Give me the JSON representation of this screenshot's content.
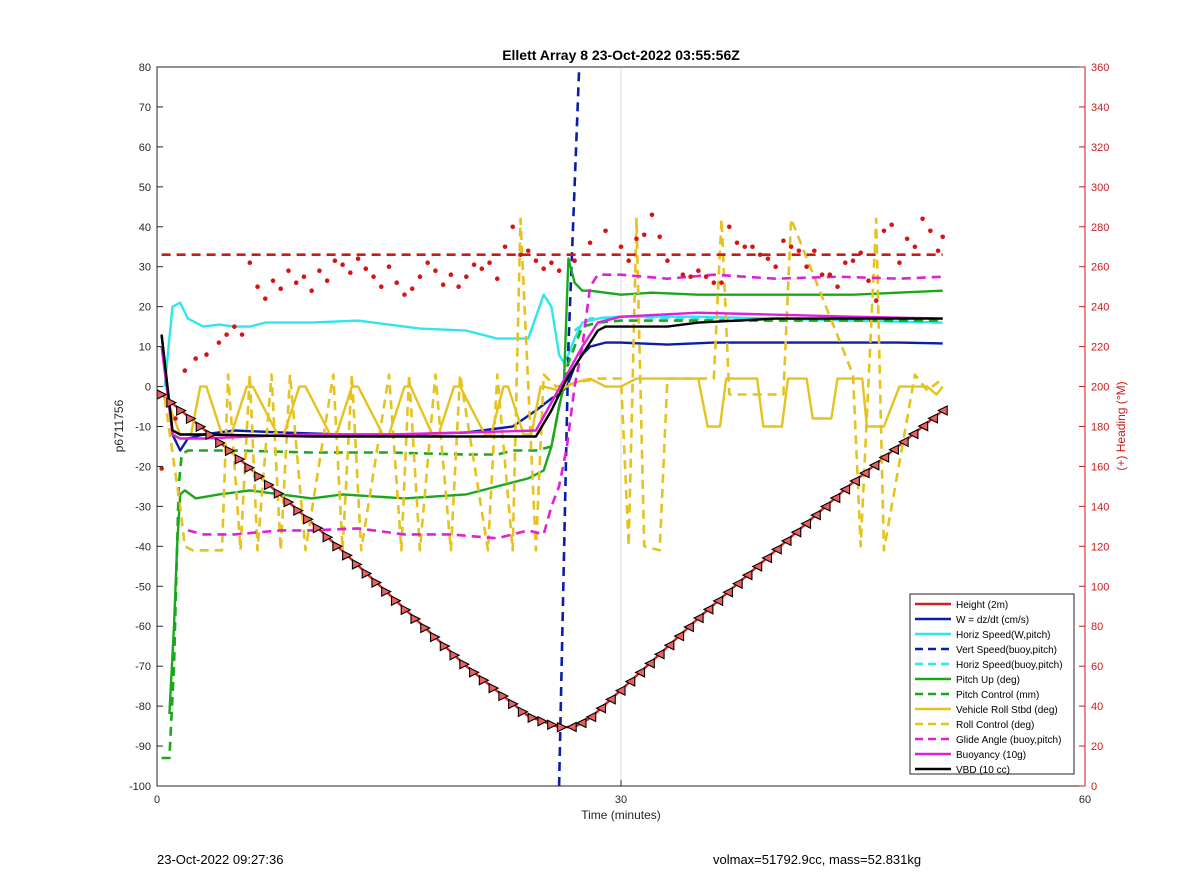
{
  "chart_data": {
    "type": "line",
    "title": "Ellett Array 8 23-Oct-2022 03:55:56Z",
    "xlabel": "Time (minutes)",
    "ylabel": "p6711756",
    "y2label": "(+) Heading (°M)",
    "xlim": [
      0,
      60
    ],
    "ylim": [
      -100,
      80
    ],
    "y2lim": [
      0,
      360
    ],
    "xticks": [
      0,
      30,
      60
    ],
    "yticks": [
      -100,
      -90,
      -80,
      -70,
      -60,
      -50,
      -40,
      -30,
      -20,
      -10,
      0,
      10,
      20,
      30,
      40,
      50,
      60,
      70,
      80
    ],
    "y2ticks": [
      0,
      20,
      40,
      60,
      80,
      100,
      120,
      140,
      160,
      180,
      200,
      220,
      240,
      260,
      280,
      300,
      320,
      340,
      360
    ],
    "grid": "x-only",
    "legend_position": "bottom-right",
    "series": [
      {
        "name": "Height (2m)",
        "color": "#d62020",
        "dash": "solid",
        "axis": "left",
        "x": [
          0.3,
          5,
          10,
          15,
          20,
          24,
          26,
          27,
          28,
          30,
          35,
          40,
          45,
          50.8
        ],
        "y": [
          -2,
          -17,
          -34,
          -52,
          -70,
          -82.5,
          -85.3,
          -85.2,
          -83,
          -76,
          -58,
          -41,
          -24,
          -6
        ]
      },
      {
        "name": "W = dz/dt (cm/s)",
        "color": "#0a1ea8",
        "dash": "solid",
        "axis": "left",
        "x": [
          0.3,
          1,
          1.5,
          2,
          3,
          5,
          8,
          12,
          16,
          20,
          23,
          24.5,
          25.5,
          26,
          26.5,
          27,
          27.5,
          28,
          29,
          30,
          33,
          36,
          40,
          44,
          48,
          50.8
        ],
        "y": [
          13,
          -12,
          -16,
          -13,
          -12,
          -11,
          -11.5,
          -12,
          -12,
          -11.5,
          -10,
          -6,
          -3,
          -2,
          0,
          5,
          8,
          10,
          11,
          11,
          10.5,
          11,
          11,
          11,
          11,
          10.8
        ]
      },
      {
        "name": "Horiz Speed(W,pitch)",
        "color": "#2ee6ee",
        "dash": "solid",
        "axis": "left",
        "x": [
          0.5,
          1,
          1.5,
          2,
          2.5,
          3,
          4,
          5,
          6,
          7,
          10,
          13,
          15,
          17,
          20,
          22,
          24,
          25,
          25.5,
          26,
          26.3,
          26.6,
          27,
          27.5,
          28.5,
          30,
          35,
          40,
          45,
          50.8
        ],
        "y": [
          0,
          20,
          21,
          17,
          16,
          15,
          15.5,
          15,
          15,
          16,
          16,
          16.5,
          15.5,
          14.5,
          14,
          12,
          12,
          23,
          20,
          8,
          6,
          8,
          12,
          16,
          17,
          17.5,
          17.5,
          17,
          16.5,
          16
        ]
      },
      {
        "name": "Vert Speed(buoy,pitch)",
        "color": "#0a1ea8",
        "dash": "dashed",
        "axis": "left",
        "x": [
          26,
          26.6,
          27.3
        ],
        "y": [
          -100,
          10,
          80
        ]
      },
      {
        "name": "Horiz Speed(buoy,pitch)",
        "color": "#2ee6ee",
        "dash": "dashed",
        "axis": "left",
        "x": [
          27,
          28,
          30,
          35,
          40,
          45,
          50.8
        ],
        "y": [
          14,
          17,
          17.5,
          17,
          17,
          16.5,
          16
        ]
      },
      {
        "name": "Pitch Up (deg)",
        "color": "#1aa81a",
        "dash": "solid",
        "axis": "left",
        "x": [
          0.8,
          1.1,
          1.3,
          1.5,
          1.8,
          2.5,
          4,
          6,
          8,
          10,
          12,
          14,
          16,
          18,
          20,
          22,
          24,
          25,
          25.5,
          26,
          26.3,
          26.6,
          27,
          27.5,
          28,
          30,
          32,
          35,
          40,
          45,
          50.8
        ],
        "y": [
          -82,
          -60,
          -40,
          -27,
          -26,
          -28,
          -27,
          -26,
          -27,
          -28,
          -27,
          -27.5,
          -28,
          -27.5,
          -27,
          -25,
          -23,
          -21,
          -15,
          -5,
          0,
          32,
          26,
          24,
          24,
          23,
          23.5,
          23,
          23,
          23,
          24
        ]
      },
      {
        "name": "Pitch Control (mm)",
        "color": "#1aa81a",
        "dash": "dashed",
        "axis": "left",
        "x": [
          0.3,
          0.8,
          1.1,
          1.4,
          1.6,
          2,
          5,
          10,
          15,
          20,
          22,
          23,
          24.5,
          25.5,
          26.5,
          27.5,
          28.5,
          30,
          40,
          50.8
        ],
        "y": [
          -93,
          -93,
          -70,
          -25,
          -17,
          -16,
          -16,
          -16.5,
          -16.5,
          -17,
          -17,
          -16,
          -16,
          -15,
          5,
          15,
          16,
          16.5,
          16.5,
          16.5
        ]
      },
      {
        "name": "Vehicle Roll Stbd (deg)",
        "color": "#e6c21f",
        "dash": "solid",
        "axis": "left",
        "x": [
          0.5,
          1.5,
          2.2,
          2.8,
          3.2,
          4.2,
          4.8,
          5.8,
          6.2,
          7.8,
          8.2,
          9.2,
          9.6,
          11.2,
          11.6,
          12.6,
          13,
          14.6,
          15,
          16,
          16.4,
          17.8,
          18.2,
          19.2,
          19.6,
          21.2,
          21.6,
          22.4,
          22.7,
          23.7,
          24.2,
          24.8,
          25,
          26,
          27,
          28,
          29,
          30,
          31,
          35,
          35.6,
          36.4,
          36.8,
          38.8,
          39.2,
          40.4,
          40.8,
          42,
          42.4,
          43.6,
          44,
          45.6,
          45.9,
          47,
          48,
          49.8,
          50.4,
          50.8
        ],
        "y": [
          -2,
          -12,
          -12,
          0,
          0,
          -12,
          -12,
          0,
          0,
          -12,
          -12,
          0,
          0,
          -12,
          -12,
          0,
          0,
          -12,
          -12,
          0,
          0,
          -12,
          -12,
          0,
          0,
          -12,
          -12,
          0,
          0,
          -12,
          -12,
          0,
          0,
          -1,
          1,
          2,
          0,
          0,
          2,
          2,
          -10,
          -10,
          2,
          2,
          -10,
          -10,
          2,
          2,
          -8,
          -8,
          2,
          2,
          -10,
          -10,
          0,
          0,
          -2,
          0
        ]
      },
      {
        "name": "Roll Control (deg)",
        "color": "#e6c21f",
        "dash": "dashed",
        "axis": "left",
        "x": [
          0.5,
          1.5,
          1.8,
          2.3,
          4.2,
          4.6,
          5.4,
          6,
          6.5,
          7.4,
          8,
          8.6,
          9.6,
          11.4,
          12,
          12.6,
          13.2,
          15,
          15.8,
          16.3,
          17,
          18,
          19,
          19.6,
          21.4,
          22,
          23,
          23.5,
          24.5,
          25,
          25.8,
          28.5,
          30,
          30.5,
          31,
          31.5,
          32.5,
          33,
          36,
          36.5,
          37,
          40.5,
          41,
          45,
          45.5,
          46.5,
          47,
          49,
          49.8,
          50.8
        ],
        "y": [
          -3,
          -30,
          -40,
          -41,
          -41,
          3,
          -41,
          3,
          -41,
          3,
          -41,
          3,
          -41,
          3,
          -41,
          3,
          -41,
          3,
          -41,
          3,
          -41,
          3,
          -41,
          3,
          -41,
          3,
          -41,
          42,
          -41,
          3,
          0,
          2,
          2,
          -40,
          42,
          -40,
          -41,
          2,
          2,
          42,
          -2,
          -2,
          42,
          3,
          -40,
          42,
          -41,
          3,
          -1,
          2
        ]
      },
      {
        "name": "Glide Angle (buoy,pitch)",
        "color": "#e020d8",
        "dash": "dashed",
        "axis": "left",
        "x": [
          2,
          3,
          5,
          8,
          10,
          13,
          16,
          19,
          22,
          24,
          25,
          25.5,
          26,
          26.5,
          27,
          27.5,
          28,
          28.5,
          29,
          30,
          33,
          36,
          40,
          44,
          48,
          50.8
        ],
        "y": [
          -36,
          -37,
          -37,
          -36,
          -36,
          -35.5,
          -37,
          -37,
          -38,
          -36,
          -37,
          -30,
          -25,
          -15,
          0,
          10,
          25,
          28,
          28,
          28,
          27,
          28,
          27,
          27.5,
          27,
          27.5
        ]
      },
      {
        "name": "Buoyancy (10g)",
        "color": "#e020d8",
        "dash": "solid",
        "axis": "left",
        "x": [
          0.3,
          1,
          1.5,
          3,
          6,
          10,
          15,
          20,
          24.5,
          25.5,
          26.5,
          27.5,
          28.5,
          30,
          35,
          40,
          45,
          50.8
        ],
        "y": [
          10,
          -12,
          -13,
          -13,
          -12.5,
          -12,
          -12,
          -11.5,
          -11,
          -4,
          3,
          10,
          16,
          17.5,
          18.5,
          18,
          17.5,
          17
        ]
      },
      {
        "name": "VBD (10 cc)",
        "color": "#000000",
        "dash": "solid",
        "axis": "left",
        "x": [
          0.3,
          1,
          1.5,
          3,
          10,
          20,
          24.5,
          25.5,
          26.5,
          27.5,
          28.5,
          29,
          30,
          33,
          35,
          40,
          45,
          50.8
        ],
        "y": [
          13,
          -11,
          -12,
          -12,
          -12.5,
          -12.5,
          -12.5,
          -6,
          2,
          8,
          14,
          15,
          15,
          15,
          16,
          17,
          17,
          17
        ]
      },
      {
        "name": "",
        "color": "#cc1a1a",
        "dash": "dashed",
        "axis": "left",
        "x": [
          0.3,
          50.8
        ],
        "y": [
          33,
          33
        ]
      }
    ]
  },
  "footer": {
    "left": "23-Oct-2022 09:27:36",
    "right": "volmax=51792.9cc, mass=52.831kg"
  }
}
